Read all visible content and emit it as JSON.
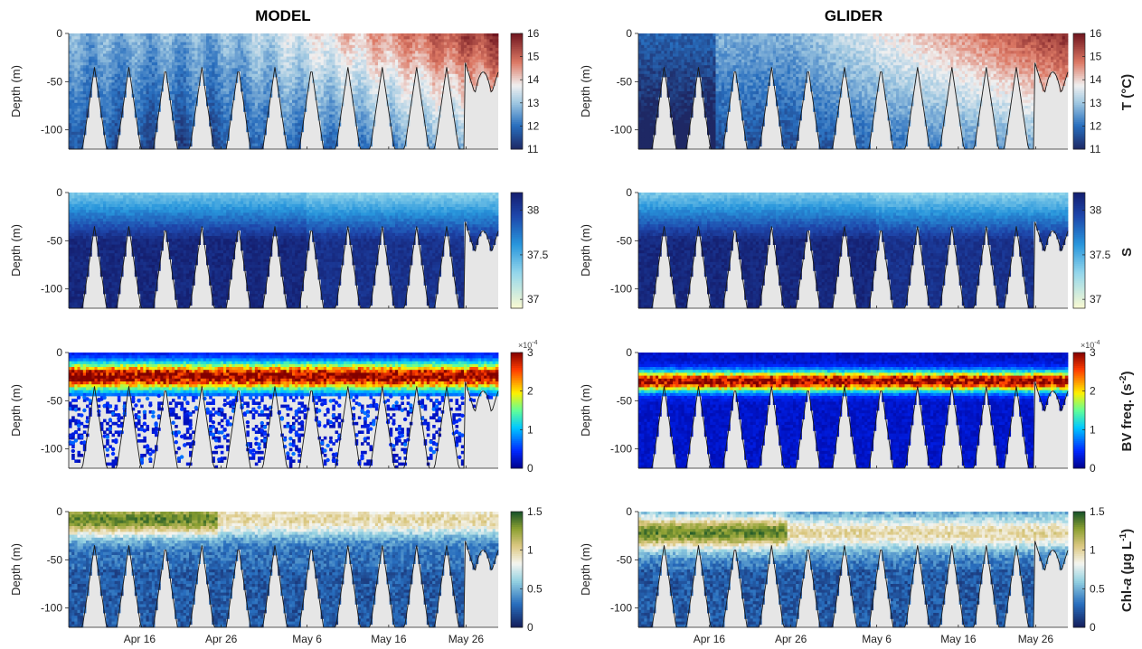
{
  "columns": [
    {
      "key": "model",
      "title": "MODEL"
    },
    {
      "key": "glider",
      "title": "GLIDER"
    }
  ],
  "chart_data": [
    {
      "type": "heatmap",
      "column": "MODEL",
      "variable": "temperature",
      "ylabel": "Depth (m)",
      "ylim": [
        -120,
        0
      ],
      "yticks": [
        0,
        -50,
        -100
      ],
      "xticks": [
        "Apr 16",
        "Apr 26",
        "May 6",
        "May 16",
        "May 26"
      ],
      "colorbar": {
        "label": "T (°C)",
        "range": [
          11,
          16
        ],
        "ticks": [
          11,
          12,
          13,
          14,
          15,
          16
        ],
        "colormap": "blue-white-red"
      },
      "profile_notes": "warming from ~12-13 °C in April to 15-16 °C surface water by late May; cold columns extend to the bottom in early April"
    },
    {
      "type": "heatmap",
      "column": "MODEL",
      "variable": "salinity",
      "ylabel": "Depth (m)",
      "ylim": [
        -120,
        0
      ],
      "yticks": [
        0,
        -50,
        -100
      ],
      "xticks": [
        "Apr 16",
        "Apr 26",
        "May 6",
        "May 16",
        "May 26"
      ],
      "colorbar": {
        "label": "S",
        "range": [
          36.9,
          38.2
        ],
        "ticks": [
          37,
          37.5,
          38
        ],
        "colormap": "yellow-blue"
      },
      "profile_notes": "fresher (~37.5) surface layer above ~20-40 m, saline (>38) water below"
    },
    {
      "type": "scatter",
      "column": "MODEL",
      "variable": "bv_frequency",
      "ylabel": "Depth (m)",
      "ylim": [
        -120,
        0
      ],
      "yticks": [
        0,
        -50,
        -100
      ],
      "xticks": [
        "Apr 16",
        "Apr 26",
        "May 6",
        "May 16",
        "May 26"
      ],
      "colorbar": {
        "label": "BV freq. (s-2)",
        "multiplier": "×10^-4",
        "range": [
          0,
          3
        ],
        "ticks": [
          0,
          1,
          2,
          3
        ],
        "colormap": "jet"
      },
      "profile_notes": "high stratification (2-3e-4) concentrated between ~10 and 40 m, weak below"
    },
    {
      "type": "heatmap",
      "column": "MODEL",
      "variable": "chlorophyll",
      "ylabel": "Depth (m)",
      "ylim": [
        -120,
        0
      ],
      "yticks": [
        0,
        -50,
        -100
      ],
      "xticks": [
        "Apr 16",
        "Apr 26",
        "May 6",
        "May 16",
        "May 26"
      ],
      "colorbar": {
        "label": "Chl-a (μg L-1)",
        "range": [
          0,
          1.5
        ],
        "ticks": [
          0,
          0.5,
          1,
          1.5
        ],
        "colormap": "blue-white-green"
      },
      "profile_notes": "surface values 1-1.5 in mid April, decreasing later; deep water 0.3-0.6"
    },
    {
      "type": "heatmap",
      "column": "GLIDER",
      "variable": "temperature",
      "ylabel": "Depth (m)",
      "ylim": [
        -120,
        0
      ],
      "yticks": [
        0,
        -50,
        -100
      ],
      "xticks": [
        "Apr 16",
        "Apr 26",
        "May 6",
        "May 16",
        "May 26"
      ],
      "colorbar": {
        "label": "T (°C)",
        "range": [
          11,
          16
        ],
        "ticks": [
          11,
          12,
          13,
          14,
          15,
          16
        ],
        "colormap": "blue-white-red"
      },
      "profile_notes": "cool 12-13 °C in April, warm 15-16 °C surface layer developing after May 6"
    },
    {
      "type": "heatmap",
      "column": "GLIDER",
      "variable": "salinity",
      "ylabel": "Depth (m)",
      "ylim": [
        -120,
        0
      ],
      "yticks": [
        0,
        -50,
        -100
      ],
      "xticks": [
        "Apr 16",
        "Apr 26",
        "May 6",
        "May 16",
        "May 26"
      ],
      "colorbar": {
        "label": "S",
        "range": [
          36.9,
          38.2
        ],
        "ticks": [
          37,
          37.5,
          38
        ],
        "colormap": "yellow-blue"
      },
      "profile_notes": "intermediate salinity near surface, 38+ at depth"
    },
    {
      "type": "heatmap",
      "column": "GLIDER",
      "variable": "bv_frequency",
      "ylabel": "Depth (m)",
      "ylim": [
        -120,
        0
      ],
      "yticks": [
        0,
        -50,
        -100
      ],
      "xticks": [
        "Apr 16",
        "Apr 26",
        "May 6",
        "May 16",
        "May 26"
      ],
      "colorbar": {
        "label": "BV freq. (s-2)",
        "multiplier": "×10^-4",
        "range": [
          0,
          3
        ],
        "ticks": [
          0,
          1,
          2,
          3
        ],
        "colormap": "jet"
      },
      "profile_notes": "thin strong stratification band around 20-40 m"
    },
    {
      "type": "heatmap",
      "column": "GLIDER",
      "variable": "chlorophyll",
      "ylabel": "Depth (m)",
      "ylim": [
        -120,
        0
      ],
      "yticks": [
        0,
        -50,
        -100
      ],
      "xticks": [
        "Apr 16",
        "Apr 26",
        "May 6",
        "May 16",
        "May 26"
      ],
      "colorbar": {
        "label": "Chl-a (μg L-1)",
        "range": [
          0,
          1.5
        ],
        "ticks": [
          0,
          0.5,
          1,
          1.5
        ],
        "colormap": "blue-white-green"
      },
      "profile_notes": "subsurface chlorophyll maximum ~1-1.5 near 10-40 m, low values below"
    }
  ],
  "labels": {
    "T": "T (°C)",
    "S": "S",
    "BV_main": "BV freq. (s",
    "BV_sup": "-2",
    "BV_end": ")",
    "Chl_main": "Chl-",
    "Chl_it": "a",
    "Chl_rest": " (μg L",
    "Chl_sup": "-1",
    "Chl_end": ")",
    "mult_base": "×10",
    "mult_exp": "-4"
  },
  "colors": {
    "bathymetry": "#e6e6e6",
    "bathy_line": "#1a1a1a"
  }
}
